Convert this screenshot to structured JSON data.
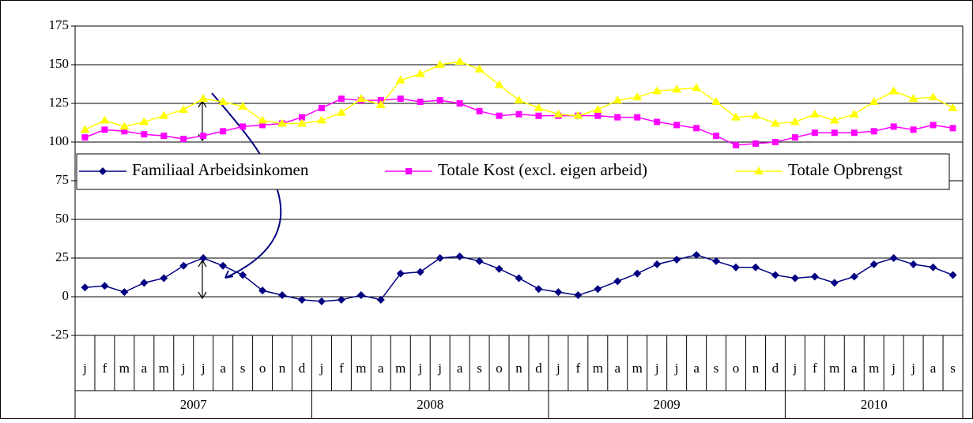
{
  "chart_data": {
    "type": "line",
    "categories": [
      "j",
      "f",
      "m",
      "a",
      "m",
      "j",
      "j",
      "a",
      "s",
      "o",
      "n",
      "d",
      "j",
      "f",
      "m",
      "a",
      "m",
      "j",
      "j",
      "a",
      "s",
      "o",
      "n",
      "d",
      "j",
      "f",
      "m",
      "a",
      "m",
      "j",
      "j",
      "a",
      "s",
      "o",
      "n",
      "d",
      "j",
      "f",
      "m",
      "a",
      "m",
      "j",
      "j",
      "a",
      "s"
    ],
    "category_groups": [
      "2007",
      "2007",
      "2007",
      "2007",
      "2007",
      "2007",
      "2007",
      "2007",
      "2007",
      "2007",
      "2007",
      "2007",
      "2008",
      "2008",
      "2008",
      "2008",
      "2008",
      "2008",
      "2008",
      "2008",
      "2008",
      "2008",
      "2008",
      "2008",
      "2009",
      "2009",
      "2009",
      "2009",
      "2009",
      "2009",
      "2009",
      "2009",
      "2009",
      "2009",
      "2009",
      "2009",
      "2010",
      "2010",
      "2010",
      "2010",
      "2010",
      "2010",
      "2010",
      "2010",
      "2010"
    ],
    "series": [
      {
        "name": "Familiaal Arbeidsinkomen",
        "color": "#000080",
        "marker": "diamond",
        "values": [
          6,
          7,
          3,
          9,
          12,
          20,
          25,
          20,
          14,
          4,
          1,
          -2,
          -3,
          -2,
          1,
          -2,
          15,
          16,
          25,
          26,
          23,
          18,
          12,
          5,
          3,
          1,
          5,
          10,
          15,
          21,
          24,
          27,
          23,
          19,
          19,
          14,
          12,
          13,
          9,
          13,
          21,
          25,
          21,
          19,
          14
        ]
      },
      {
        "name": "Totale Kost (excl. eigen arbeid)",
        "color": "#ff00ff",
        "marker": "square",
        "values": [
          103,
          108,
          107,
          105,
          104,
          102,
          104,
          107,
          110,
          111,
          112,
          116,
          122,
          128,
          127,
          127,
          128,
          126,
          127,
          125,
          120,
          117,
          118,
          117,
          117,
          117,
          117,
          116,
          116,
          113,
          111,
          109,
          104,
          98,
          99,
          100,
          103,
          106,
          106,
          106,
          107,
          110,
          108,
          111,
          109
        ]
      },
      {
        "name": "Totale Opbrengst",
        "color": "#ffff00",
        "marker": "triangle",
        "values": [
          108,
          114,
          110,
          113,
          117,
          121,
          128,
          126,
          123,
          114,
          112,
          112,
          114,
          119,
          128,
          124,
          140,
          144,
          150,
          152,
          147,
          137,
          127,
          122,
          118,
          117,
          121,
          127,
          129,
          133,
          134,
          135,
          126,
          116,
          117,
          112,
          113,
          118,
          114,
          118,
          126,
          133,
          128,
          129,
          122
        ]
      }
    ],
    "ylim": [
      -25,
      175
    ],
    "yticks": [
      -25,
      0,
      25,
      50,
      75,
      100,
      125,
      150,
      175
    ],
    "grid": true
  }
}
